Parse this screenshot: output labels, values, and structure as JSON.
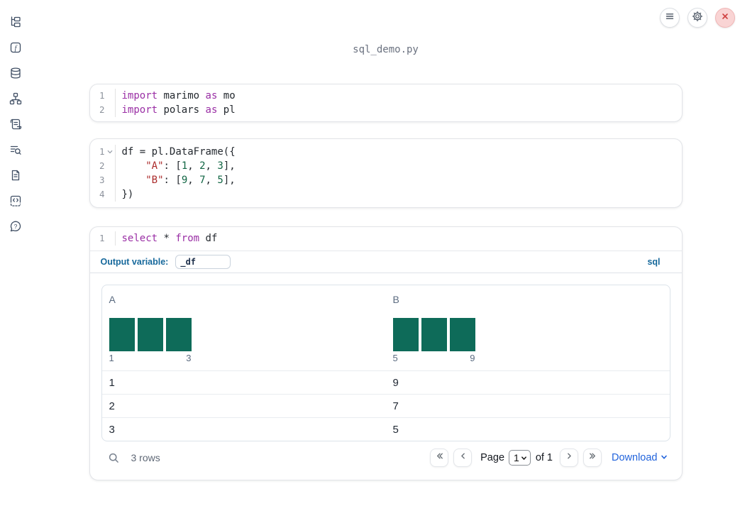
{
  "window": {
    "title": "sql_demo.py"
  },
  "topbar": {
    "buttons": [
      {
        "name": "notebook-menu",
        "icon": "hamburger-icon"
      },
      {
        "name": "settings",
        "icon": "gear-icon"
      },
      {
        "name": "shutdown",
        "icon": "close-icon"
      }
    ]
  },
  "sidebar": {
    "items": [
      {
        "name": "file-explorer",
        "icon": "file-tree-icon"
      },
      {
        "name": "variables",
        "icon": "function-icon"
      },
      {
        "name": "data-sources",
        "icon": "database-icon"
      },
      {
        "name": "dependency-graph",
        "icon": "network-icon"
      },
      {
        "name": "logs",
        "icon": "scroll-icon"
      },
      {
        "name": "tracebacks",
        "icon": "list-search-icon"
      },
      {
        "name": "documentation",
        "icon": "document-icon"
      },
      {
        "name": "snippets",
        "icon": "code-block-icon"
      },
      {
        "name": "help",
        "icon": "help-bubble-icon"
      }
    ]
  },
  "cells": [
    {
      "lines": [
        {
          "num": "1",
          "tokens": [
            [
              "kw",
              "import"
            ],
            [
              "txt",
              " marimo "
            ],
            [
              "kw",
              "as"
            ],
            [
              "txt",
              " mo"
            ]
          ]
        },
        {
          "num": "2",
          "tokens": [
            [
              "kw",
              "import"
            ],
            [
              "txt",
              " polars "
            ],
            [
              "kw",
              "as"
            ],
            [
              "txt",
              " pl"
            ]
          ]
        }
      ]
    },
    {
      "lines": [
        {
          "num": "1",
          "fold": true,
          "tokens": [
            [
              "txt",
              "df = pl.DataFrame({"
            ]
          ]
        },
        {
          "num": "2",
          "tokens": [
            [
              "txt",
              "    "
            ],
            [
              "str",
              "\"A\""
            ],
            [
              "txt",
              ": ["
            ],
            [
              "num",
              "1"
            ],
            [
              "txt",
              ", "
            ],
            [
              "num",
              "2"
            ],
            [
              "txt",
              ", "
            ],
            [
              "num",
              "3"
            ],
            [
              "txt",
              "],"
            ]
          ]
        },
        {
          "num": "3",
          "tokens": [
            [
              "txt",
              "    "
            ],
            [
              "str",
              "\"B\""
            ],
            [
              "txt",
              ": ["
            ],
            [
              "num",
              "9"
            ],
            [
              "txt",
              ", "
            ],
            [
              "num",
              "7"
            ],
            [
              "txt",
              ", "
            ],
            [
              "num",
              "5"
            ],
            [
              "txt",
              "],"
            ]
          ]
        },
        {
          "num": "4",
          "tokens": [
            [
              "txt",
              "})"
            ]
          ]
        }
      ]
    },
    {
      "lines": [
        {
          "num": "1",
          "tokens": [
            [
              "kw",
              "select"
            ],
            [
              "txt",
              " * "
            ],
            [
              "kw",
              "from"
            ],
            [
              "txt",
              " df"
            ]
          ]
        }
      ]
    }
  ],
  "sql_meta": {
    "output_label": "Output variable:",
    "output_value": "_df",
    "language": "sql"
  },
  "table": {
    "columns": [
      {
        "header": "A",
        "hist": {
          "bars": [
            1,
            1,
            1
          ],
          "min_label": "1",
          "max_label": "3"
        }
      },
      {
        "header": "B",
        "hist": {
          "bars": [
            1,
            1,
            1
          ],
          "min_label": "5",
          "max_label": "9"
        }
      }
    ],
    "rows": [
      [
        "1",
        "9"
      ],
      [
        "2",
        "7"
      ],
      [
        "3",
        "5"
      ]
    ],
    "footer": {
      "row_count": "3 rows",
      "page_label": "Page",
      "page_value": "1",
      "of_label": "of 1",
      "download_label": "Download"
    }
  },
  "colors": {
    "histogram_bar": "#0e6b59",
    "accent_blue": "#17699c",
    "download_blue": "#2264dc",
    "keyword": "#9a2fa5",
    "string": "#ab2b2b",
    "number": "#116644"
  }
}
